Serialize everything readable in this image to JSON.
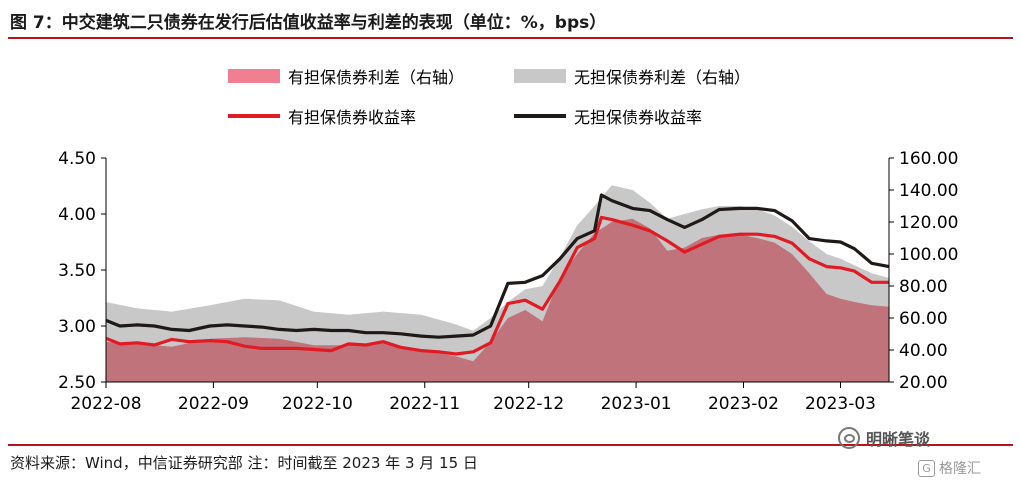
{
  "figure": {
    "title": "图 7：中交建筑二只债券在发行后估值收益率与利差的表现（单位：%，bps）",
    "source": "资料来源：Wind，中信证券研究部 注：时间截至 2023 年 3 月 15 日"
  },
  "watermark": {
    "primary": "明晰笔谈",
    "secondary": "格隆汇",
    "secondary_glyph": "G"
  },
  "colors": {
    "rule": "#b8121c",
    "secured_spread": "#c0737a",
    "secured_spread_legend": "#f08091",
    "unsecured_spread": "#c8c8c8",
    "secured_yield": "#e01b24",
    "unsecured_yield": "#1f1a17"
  },
  "chart_data": {
    "type": "line",
    "x_axis": {
      "start": "2022-08-01",
      "end": "2023-03-15",
      "ticks": [
        {
          "date": "2022-08-01",
          "label": "2022-08"
        },
        {
          "date": "2022-09-01",
          "label": "2022-09"
        },
        {
          "date": "2022-10-01",
          "label": "2022-10"
        },
        {
          "date": "2022-11-01",
          "label": "2022-11"
        },
        {
          "date": "2022-12-01",
          "label": "2022-12"
        },
        {
          "date": "2023-01-01",
          "label": "2023-01"
        },
        {
          "date": "2023-02-01",
          "label": "2023-02"
        },
        {
          "date": "2023-03-01",
          "label": "2023-03"
        }
      ]
    },
    "y_left": {
      "min": 2.5,
      "max": 4.5,
      "ticks": [
        "2.50",
        "3.00",
        "3.50",
        "4.00",
        "4.50"
      ]
    },
    "y_right": {
      "min": 20,
      "max": 160,
      "ticks": [
        "20.00",
        "40.00",
        "60.00",
        "80.00",
        "100.00",
        "120.00",
        "140.00",
        "160.00"
      ]
    },
    "grid": false,
    "legend_position": "top-center",
    "series": [
      {
        "name": "有担保债券利差（右轴）",
        "kind": "area",
        "axis": "right",
        "points": [
          [
            "2022-08-01",
            45
          ],
          [
            "2022-08-10",
            44
          ],
          [
            "2022-08-20",
            42
          ],
          [
            "2022-08-31",
            47
          ],
          [
            "2022-09-10",
            48
          ],
          [
            "2022-09-20",
            47
          ],
          [
            "2022-09-30",
            43
          ],
          [
            "2022-10-10",
            43
          ],
          [
            "2022-10-20",
            45
          ],
          [
            "2022-10-31",
            40
          ],
          [
            "2022-11-10",
            36
          ],
          [
            "2022-11-15",
            33
          ],
          [
            "2022-11-20",
            45
          ],
          [
            "2022-11-25",
            60
          ],
          [
            "2022-11-30",
            65
          ],
          [
            "2022-12-05",
            58
          ],
          [
            "2022-12-10",
            85
          ],
          [
            "2022-12-15",
            100
          ],
          [
            "2022-12-20",
            113
          ],
          [
            "2022-12-25",
            120
          ],
          [
            "2022-12-31",
            122
          ],
          [
            "2023-01-05",
            116
          ],
          [
            "2023-01-10",
            102
          ],
          [
            "2023-01-15",
            104
          ],
          [
            "2023-01-20",
            110
          ],
          [
            "2023-01-25",
            112
          ],
          [
            "2023-01-31",
            112
          ],
          [
            "2023-02-05",
            110
          ],
          [
            "2023-02-10",
            107
          ],
          [
            "2023-02-15",
            100
          ],
          [
            "2023-02-20",
            88
          ],
          [
            "2023-02-25",
            75
          ],
          [
            "2023-03-01",
            72
          ],
          [
            "2023-03-05",
            70
          ],
          [
            "2023-03-10",
            68
          ],
          [
            "2023-03-15",
            67
          ]
        ]
      },
      {
        "name": "无担保债券利差（右轴）",
        "kind": "area",
        "axis": "right",
        "points": [
          [
            "2022-08-01",
            70
          ],
          [
            "2022-08-10",
            66
          ],
          [
            "2022-08-20",
            64
          ],
          [
            "2022-08-31",
            68
          ],
          [
            "2022-09-10",
            72
          ],
          [
            "2022-09-20",
            71
          ],
          [
            "2022-09-30",
            64
          ],
          [
            "2022-10-10",
            62
          ],
          [
            "2022-10-20",
            64
          ],
          [
            "2022-10-31",
            62
          ],
          [
            "2022-11-10",
            56
          ],
          [
            "2022-11-15",
            52
          ],
          [
            "2022-11-20",
            60
          ],
          [
            "2022-11-25",
            70
          ],
          [
            "2022-11-30",
            78
          ],
          [
            "2022-12-05",
            80
          ],
          [
            "2022-12-10",
            98
          ],
          [
            "2022-12-15",
            118
          ],
          [
            "2022-12-20",
            130
          ],
          [
            "2022-12-25",
            143
          ],
          [
            "2022-12-31",
            140
          ],
          [
            "2023-01-05",
            132
          ],
          [
            "2023-01-10",
            122
          ],
          [
            "2023-01-15",
            125
          ],
          [
            "2023-01-20",
            128
          ],
          [
            "2023-01-25",
            130
          ],
          [
            "2023-01-31",
            130
          ],
          [
            "2023-02-05",
            128
          ],
          [
            "2023-02-10",
            124
          ],
          [
            "2023-02-15",
            117
          ],
          [
            "2023-02-20",
            108
          ],
          [
            "2023-02-25",
            100
          ],
          [
            "2023-03-01",
            97
          ],
          [
            "2023-03-05",
            93
          ],
          [
            "2023-03-10",
            88
          ],
          [
            "2023-03-15",
            85
          ]
        ]
      },
      {
        "name": "有担保债券收益率",
        "kind": "line",
        "axis": "left",
        "points": [
          [
            "2022-08-01",
            2.89
          ],
          [
            "2022-08-05",
            2.84
          ],
          [
            "2022-08-10",
            2.85
          ],
          [
            "2022-08-15",
            2.83
          ],
          [
            "2022-08-20",
            2.88
          ],
          [
            "2022-08-25",
            2.86
          ],
          [
            "2022-08-31",
            2.87
          ],
          [
            "2022-09-05",
            2.86
          ],
          [
            "2022-09-10",
            2.82
          ],
          [
            "2022-09-15",
            2.8
          ],
          [
            "2022-09-20",
            2.8
          ],
          [
            "2022-09-25",
            2.8
          ],
          [
            "2022-09-30",
            2.79
          ],
          [
            "2022-10-05",
            2.78
          ],
          [
            "2022-10-10",
            2.84
          ],
          [
            "2022-10-15",
            2.83
          ],
          [
            "2022-10-20",
            2.86
          ],
          [
            "2022-10-25",
            2.81
          ],
          [
            "2022-10-31",
            2.78
          ],
          [
            "2022-11-05",
            2.77
          ],
          [
            "2022-11-10",
            2.75
          ],
          [
            "2022-11-15",
            2.77
          ],
          [
            "2022-11-20",
            2.85
          ],
          [
            "2022-11-25",
            3.2
          ],
          [
            "2022-11-30",
            3.23
          ],
          [
            "2022-12-05",
            3.15
          ],
          [
            "2022-12-10",
            3.4
          ],
          [
            "2022-12-15",
            3.7
          ],
          [
            "2022-12-20",
            3.78
          ],
          [
            "2022-12-22",
            3.97
          ],
          [
            "2022-12-25",
            3.95
          ],
          [
            "2022-12-31",
            3.9
          ],
          [
            "2023-01-05",
            3.85
          ],
          [
            "2023-01-10",
            3.76
          ],
          [
            "2023-01-15",
            3.66
          ],
          [
            "2023-01-20",
            3.73
          ],
          [
            "2023-01-25",
            3.8
          ],
          [
            "2023-01-31",
            3.82
          ],
          [
            "2023-02-05",
            3.82
          ],
          [
            "2023-02-10",
            3.8
          ],
          [
            "2023-02-15",
            3.74
          ],
          [
            "2023-02-20",
            3.6
          ],
          [
            "2023-02-25",
            3.53
          ],
          [
            "2023-03-01",
            3.52
          ],
          [
            "2023-03-05",
            3.49
          ],
          [
            "2023-03-10",
            3.39
          ],
          [
            "2023-03-15",
            3.39
          ]
        ]
      },
      {
        "name": "无担保债券收益率",
        "kind": "line",
        "axis": "left",
        "points": [
          [
            "2022-08-01",
            3.05
          ],
          [
            "2022-08-05",
            3.0
          ],
          [
            "2022-08-10",
            3.01
          ],
          [
            "2022-08-15",
            3.0
          ],
          [
            "2022-08-20",
            2.97
          ],
          [
            "2022-08-25",
            2.96
          ],
          [
            "2022-08-31",
            3.0
          ],
          [
            "2022-09-05",
            3.01
          ],
          [
            "2022-09-10",
            3.0
          ],
          [
            "2022-09-15",
            2.99
          ],
          [
            "2022-09-20",
            2.97
          ],
          [
            "2022-09-25",
            2.96
          ],
          [
            "2022-09-30",
            2.97
          ],
          [
            "2022-10-05",
            2.96
          ],
          [
            "2022-10-10",
            2.96
          ],
          [
            "2022-10-15",
            2.94
          ],
          [
            "2022-10-20",
            2.94
          ],
          [
            "2022-10-25",
            2.93
          ],
          [
            "2022-10-31",
            2.91
          ],
          [
            "2022-11-05",
            2.9
          ],
          [
            "2022-11-10",
            2.91
          ],
          [
            "2022-11-15",
            2.92
          ],
          [
            "2022-11-20",
            3.0
          ],
          [
            "2022-11-25",
            3.38
          ],
          [
            "2022-11-30",
            3.39
          ],
          [
            "2022-12-05",
            3.45
          ],
          [
            "2022-12-10",
            3.6
          ],
          [
            "2022-12-15",
            3.78
          ],
          [
            "2022-12-20",
            3.85
          ],
          [
            "2022-12-22",
            4.17
          ],
          [
            "2022-12-25",
            4.12
          ],
          [
            "2022-12-31",
            4.05
          ],
          [
            "2023-01-05",
            4.03
          ],
          [
            "2023-01-10",
            3.95
          ],
          [
            "2023-01-15",
            3.88
          ],
          [
            "2023-01-20",
            3.95
          ],
          [
            "2023-01-25",
            4.04
          ],
          [
            "2023-01-31",
            4.05
          ],
          [
            "2023-02-05",
            4.05
          ],
          [
            "2023-02-10",
            4.03
          ],
          [
            "2023-02-15",
            3.94
          ],
          [
            "2023-02-20",
            3.78
          ],
          [
            "2023-02-25",
            3.76
          ],
          [
            "2023-03-01",
            3.75
          ],
          [
            "2023-03-05",
            3.69
          ],
          [
            "2023-03-10",
            3.56
          ],
          [
            "2023-03-15",
            3.53
          ]
        ]
      }
    ]
  }
}
